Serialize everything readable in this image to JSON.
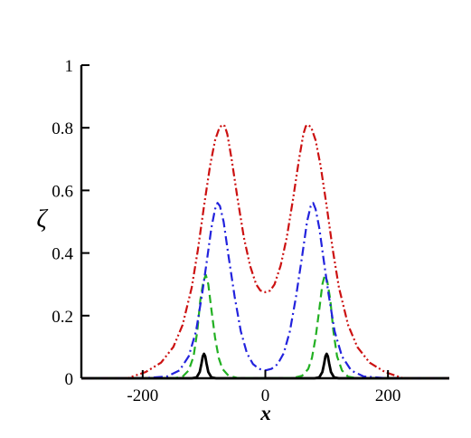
{
  "chart_data": {
    "type": "line",
    "title": "",
    "xlabel": "x",
    "ylabel": "ζ",
    "xlim": [
      -300,
      300
    ],
    "ylim": [
      0,
      1
    ],
    "x_ticks": [
      -200,
      0,
      200
    ],
    "y_ticks": [
      0,
      0.2,
      0.4,
      0.6,
      0.8,
      1
    ],
    "x_tick_labels": [
      "-200",
      "0",
      "200"
    ],
    "y_tick_labels": [
      "0",
      "0.2",
      "0.4",
      "0.6",
      "0.8",
      "1"
    ],
    "grid": false,
    "legend": "none",
    "series": [
      {
        "style": "solid",
        "color": "#000000",
        "x": [
          -300,
          -120,
          -112,
          -107,
          -104,
          -102,
          -100,
          -98,
          -96,
          -93,
          -88,
          -80,
          0,
          80,
          88,
          93,
          96,
          98,
          100,
          102,
          104,
          107,
          112,
          120,
          300
        ],
        "y": [
          0,
          0,
          0.003,
          0.02,
          0.048,
          0.07,
          0.078,
          0.07,
          0.048,
          0.02,
          0.003,
          0,
          0,
          0,
          0.003,
          0.02,
          0.048,
          0.07,
          0.078,
          0.07,
          0.048,
          0.02,
          0.003,
          0,
          0
        ]
      },
      {
        "style": "dashed",
        "color": "#22b022",
        "x": [
          -300,
          -150,
          -135,
          -125,
          -117,
          -111,
          -106,
          -101,
          -97,
          -93,
          -88,
          -82,
          -76,
          -70,
          -60,
          -45,
          0,
          45,
          60,
          70,
          76,
          82,
          88,
          93,
          97,
          101,
          106,
          111,
          117,
          125,
          135,
          150,
          300
        ],
        "y": [
          0,
          0,
          0.005,
          0.025,
          0.07,
          0.15,
          0.25,
          0.31,
          0.33,
          0.3,
          0.22,
          0.13,
          0.065,
          0.03,
          0.008,
          0.001,
          0,
          0.001,
          0.008,
          0.03,
          0.065,
          0.13,
          0.22,
          0.3,
          0.33,
          0.31,
          0.25,
          0.15,
          0.07,
          0.025,
          0.005,
          0,
          0
        ]
      },
      {
        "style": "dashdot",
        "color": "#2222dd",
        "x": [
          -300,
          -200,
          -160,
          -140,
          -125,
          -113,
          -103,
          -95,
          -88,
          -82,
          -78,
          -74,
          -68,
          -60,
          -50,
          -40,
          -30,
          -20,
          -10,
          0,
          10,
          20,
          30,
          40,
          50,
          60,
          68,
          74,
          78,
          82,
          88,
          95,
          103,
          113,
          125,
          140,
          160,
          200,
          300
        ],
        "y": [
          0,
          0,
          0.006,
          0.025,
          0.07,
          0.15,
          0.27,
          0.38,
          0.48,
          0.54,
          0.56,
          0.55,
          0.5,
          0.39,
          0.26,
          0.15,
          0.08,
          0.045,
          0.03,
          0.025,
          0.03,
          0.045,
          0.08,
          0.15,
          0.26,
          0.39,
          0.5,
          0.55,
          0.56,
          0.54,
          0.48,
          0.38,
          0.27,
          0.15,
          0.07,
          0.025,
          0.006,
          0,
          0
        ]
      },
      {
        "style": "dashdotdot",
        "color": "#cc1111",
        "x": [
          -300,
          -225,
          -195,
          -170,
          -150,
          -135,
          -120,
          -110,
          -100,
          -90,
          -82,
          -75,
          -70,
          -66,
          -62,
          -55,
          -45,
          -35,
          -25,
          -15,
          -8,
          0,
          8,
          15,
          25,
          35,
          45,
          55,
          62,
          66,
          70,
          75,
          82,
          90,
          100,
          110,
          120,
          135,
          150,
          170,
          195,
          225,
          300
        ],
        "y": [
          0,
          0,
          0.02,
          0.05,
          0.1,
          0.17,
          0.29,
          0.41,
          0.55,
          0.68,
          0.76,
          0.8,
          0.81,
          0.805,
          0.78,
          0.7,
          0.57,
          0.45,
          0.36,
          0.3,
          0.28,
          0.275,
          0.28,
          0.3,
          0.36,
          0.45,
          0.57,
          0.7,
          0.78,
          0.805,
          0.81,
          0.8,
          0.76,
          0.68,
          0.55,
          0.41,
          0.29,
          0.17,
          0.1,
          0.05,
          0.02,
          0,
          0
        ]
      }
    ]
  }
}
